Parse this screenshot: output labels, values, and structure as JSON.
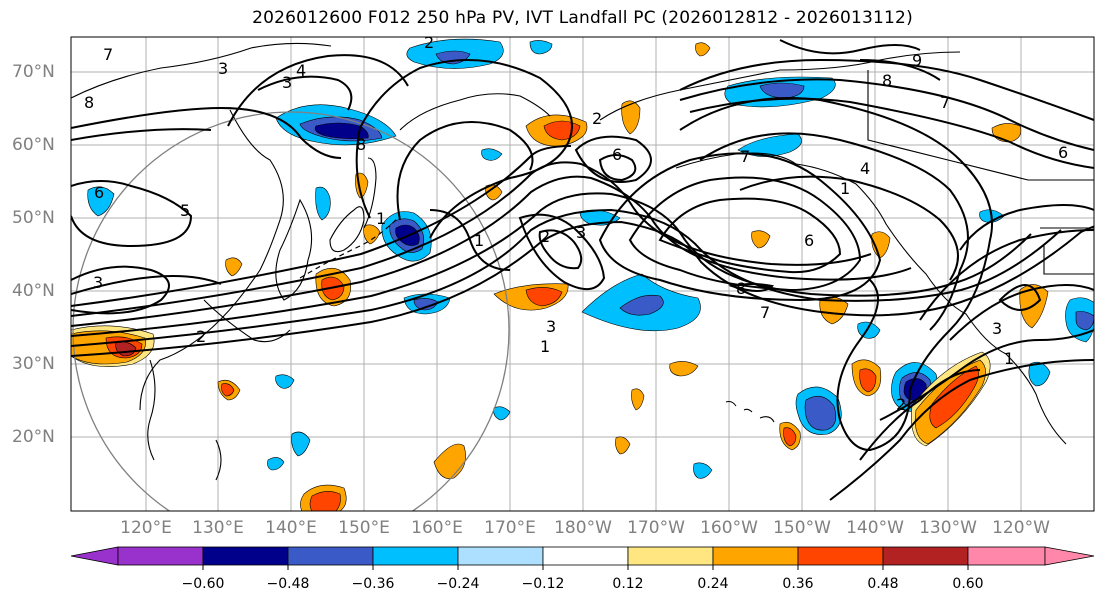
{
  "title": "2026012600 F012 250 hPa PV, IVT Landfall PC (2026012812 - 2026013112)",
  "lat_labels": [
    "70°N",
    "60°N",
    "50°N",
    "40°N",
    "30°N",
    "20°N"
  ],
  "lon_labels": [
    "120°E",
    "130°E",
    "140°E",
    "150°E",
    "160°E",
    "170°E",
    "180°W",
    "170°W",
    "160°W",
    "150°W",
    "140°W",
    "130°W",
    "120°W"
  ],
  "colorbar": {
    "ticks": [
      "−0.60",
      "−0.48",
      "−0.36",
      "−0.24",
      "−0.12",
      "0.12",
      "0.24",
      "0.36",
      "0.48",
      "0.60"
    ],
    "colors": [
      "#9932CC",
      "#00008B",
      "#3A5BC7",
      "#00BFFF",
      "#ADDFFF",
      "#FFFFFF",
      "#FFE680",
      "#FFA500",
      "#FF4500",
      "#B22222",
      "#FF88AA"
    ]
  },
  "contour_labels": [
    "3",
    "4",
    "3",
    "8",
    "2",
    "7",
    "8",
    "6",
    "5",
    "1",
    "3",
    "6",
    "2",
    "7",
    "6",
    "3",
    "8",
    "7",
    "3",
    "1",
    "9",
    "8",
    "7",
    "6",
    "4",
    "1",
    "2",
    "1",
    "1",
    "3",
    "2",
    "2"
  ]
}
